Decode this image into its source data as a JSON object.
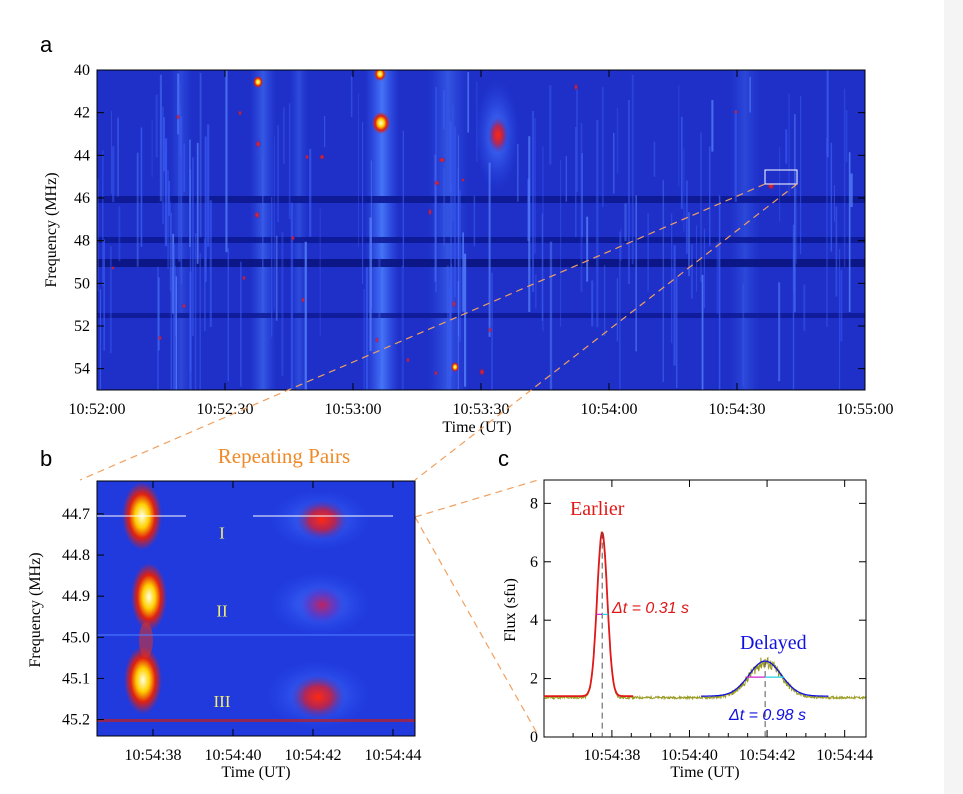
{
  "panels": {
    "a": {
      "letter": "a",
      "xlabel": "Time (UT)",
      "ylabel": "Frequency (MHz)"
    },
    "b": {
      "letter": "b",
      "title": "Repeating Pairs",
      "xlabel": "Time (UT)",
      "ylabel": "Frequency (MHz)",
      "pair_labels": [
        "I",
        "II",
        "III"
      ]
    },
    "c": {
      "letter": "c",
      "xlabel": "Time (UT)",
      "ylabel": "Flux (sfu)",
      "label_earlier": "Earlier",
      "label_delayed": "Delayed",
      "dt1": "Δt = 0.31 s",
      "dt2": "Δt = 0.98 s"
    }
  },
  "colors": {
    "background_blue": "#1a2ecc",
    "earlier": "#e01818",
    "delayed": "#1010e0",
    "orange_title": "#f08a28",
    "dashed_connector": "#f0a060",
    "observed": "#9a9a20",
    "fwhm_cyan": "#20d0e0",
    "fwhm_magenta": "#d020d0"
  },
  "chart_data": [
    {
      "id": "a",
      "type": "heatmap",
      "xlabel": "Time (UT)",
      "ylabel": "Frequency (MHz)",
      "xticks": [
        "10:52:00",
        "10:52:30",
        "10:53:00",
        "10:53:30",
        "10:54:00",
        "10:54:30",
        "10:55:00"
      ],
      "yticks": [
        40,
        42,
        44,
        46,
        48,
        50,
        52,
        54
      ],
      "xlim_seconds_after_10_52_00": [
        0,
        180
      ],
      "ylim": [
        40,
        55
      ],
      "y_inverted": true,
      "zoom_box": {
        "time": [
          "10:54:36",
          "10:54:44"
        ],
        "freq": [
          44.6,
          45.3
        ]
      }
    },
    {
      "id": "b",
      "type": "heatmap",
      "title": "Repeating Pairs",
      "xlabel": "Time (UT)",
      "ylabel": "Frequency (MHz)",
      "xticks": [
        "10:54:38",
        "10:54:40",
        "10:54:42",
        "10:54:44"
      ],
      "yticks": [
        44.7,
        44.8,
        44.9,
        45.0,
        45.1,
        45.2
      ],
      "y_inverted": true,
      "pairs": [
        {
          "label": "I",
          "freq": 44.74,
          "earlier_time": "10:54:37.8",
          "delayed_time": "10:54:41.8"
        },
        {
          "label": "II",
          "freq": 44.93,
          "earlier_time": "10:54:38.0",
          "delayed_time": "10:54:41.9"
        },
        {
          "label": "III",
          "freq": 45.15,
          "earlier_time": "10:54:37.6",
          "delayed_time": "10:54:41.8"
        }
      ]
    },
    {
      "id": "c",
      "type": "line",
      "xlabel": "Time (UT)",
      "ylabel": "Flux (sfu)",
      "xticks": [
        "10:54:38",
        "10:54:40",
        "10:54:42",
        "10:54:44"
      ],
      "yticks": [
        0,
        2,
        4,
        6,
        8
      ],
      "ylim": [
        0,
        8.8
      ],
      "baseline": 1.4,
      "series": [
        {
          "name": "Earlier",
          "peak_time": "10:54:37.75",
          "peak": 7.0,
          "fwhm_s": 0.31
        },
        {
          "name": "Delayed",
          "peak_time": "10:54:41.95",
          "peak": 2.6,
          "fwhm_s": 0.98
        }
      ]
    }
  ]
}
